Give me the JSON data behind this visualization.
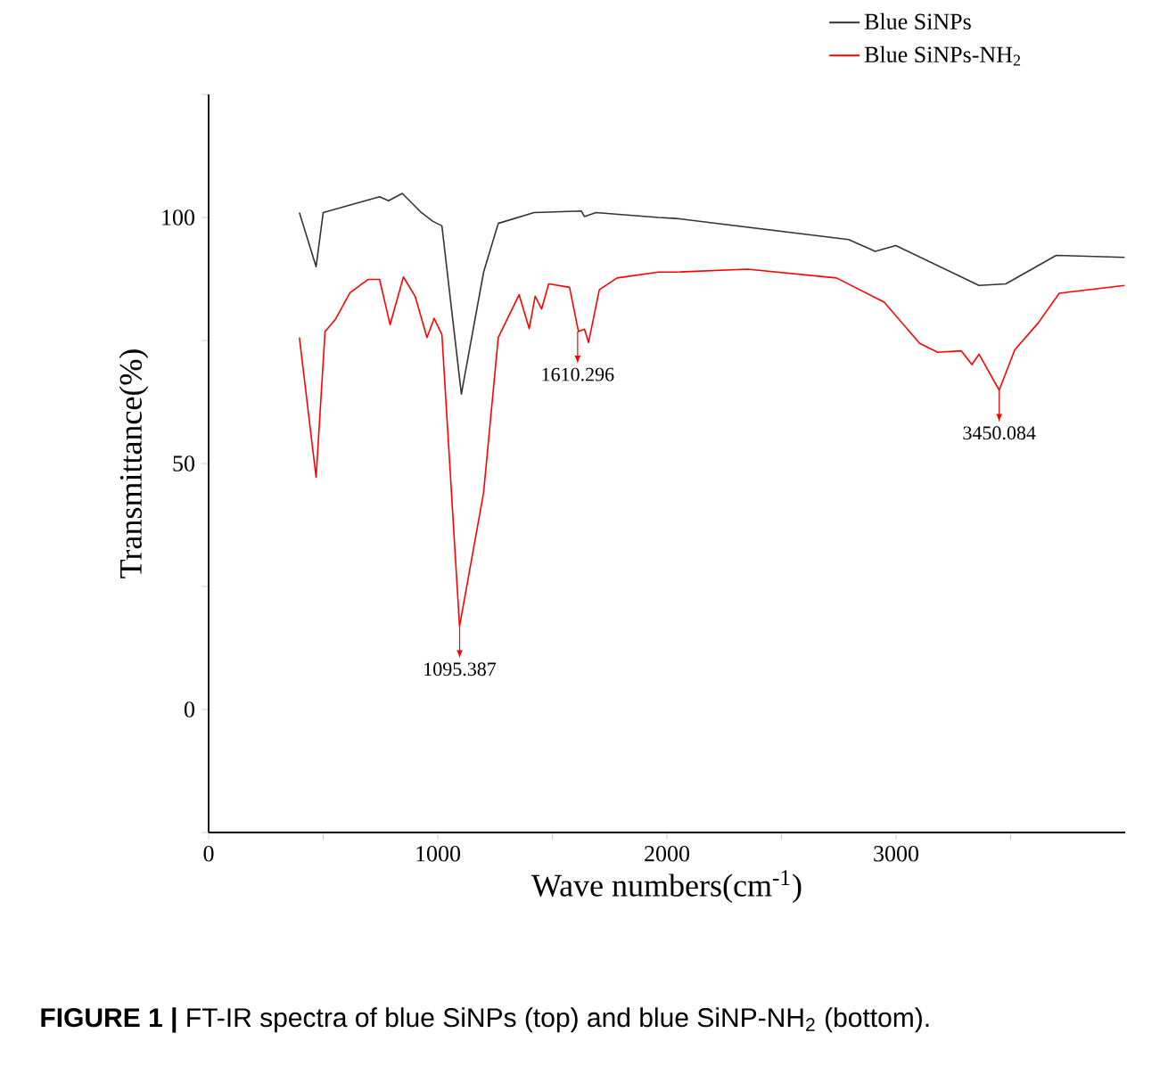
{
  "chart_data": {
    "type": "line",
    "xlabel": "Wave numbers(cm$^{-1}$)",
    "ylabel": "Transmittance(%)",
    "xlim": [
      0,
      4000
    ],
    "ylim": [
      -25,
      125
    ],
    "xticks": [
      0,
      {
        "value": 500,
        "label": null
      },
      1000,
      {
        "value": 1500,
        "label": null
      },
      2000,
      {
        "value": 2500,
        "label": null
      },
      3000,
      {
        "value": 3500,
        "label": null
      }
    ],
    "yticks": [
      {
        "value": -25,
        "label": null
      },
      0,
      {
        "value": 25,
        "label": null
      },
      50,
      {
        "value": 75,
        "label": null
      },
      100,
      {
        "value": 125,
        "label": null
      }
    ],
    "legend": "top right",
    "series": [
      {
        "name": "Blue SiNPs",
        "color": "#333333",
        "x": [
          396,
          469,
          500,
          746,
          785,
          845,
          928,
          979,
          1018,
          1103,
          1200,
          1264,
          1420,
          1627,
          1640,
          1690,
          1963,
          2041,
          2793,
          2909,
          2999,
          3362,
          3479,
          3699,
          3997
        ],
        "values": [
          101,
          90,
          101,
          104.2,
          103.4,
          104.9,
          101,
          99.2,
          98.3,
          64.1,
          88.9,
          98.8,
          101,
          101.3,
          100.2,
          101,
          100,
          99.8,
          95.5,
          93.1,
          94.3,
          86.2,
          86.5,
          92.3,
          91.9
        ]
      },
      {
        "name": "Blue SiNPs-NH$_{2}$",
        "color": "#ff0000",
        "x": [
          396,
          469,
          508,
          552,
          617,
          695,
          746,
          792,
          850,
          901,
          953,
          984,
          1018,
          1095,
          1200,
          1264,
          1355,
          1399,
          1425,
          1453,
          1484,
          1575,
          1614,
          1640,
          1658,
          1705,
          1782,
          1963,
          2041,
          2352,
          2740,
          2948,
          3103,
          3181,
          3284,
          3331,
          3362,
          3450,
          3518,
          3621,
          3712,
          3997
        ],
        "values": [
          75.6,
          47.2,
          76.8,
          79.2,
          84.7,
          87.4,
          87.4,
          78.2,
          87.9,
          84,
          75.6,
          79.5,
          76.2,
          16.9,
          44.1,
          75.6,
          84.3,
          77.4,
          84,
          81.4,
          86.5,
          85.8,
          76.8,
          77.3,
          74.6,
          85.3,
          87.7,
          88.9,
          88.9,
          89.5,
          87.7,
          82.8,
          74.4,
          72.6,
          72.9,
          70.1,
          72.2,
          64.9,
          73.1,
          78.6,
          84.6,
          86.2
        ]
      }
    ],
    "annotations": [
      {
        "text": "1095.387",
        "x": 1095.387,
        "y": 16.9
      },
      {
        "text": "1610.296",
        "x": 1610.296,
        "y": 76.8
      },
      {
        "text": "3450.084",
        "x": 3450.084,
        "y": 64.9
      },
      "**FIGURE 1 |** FT-IR spectra of blue SiNPs (top) and blue SiNP-NH$_{2}$ (bottom)."
    ]
  }
}
